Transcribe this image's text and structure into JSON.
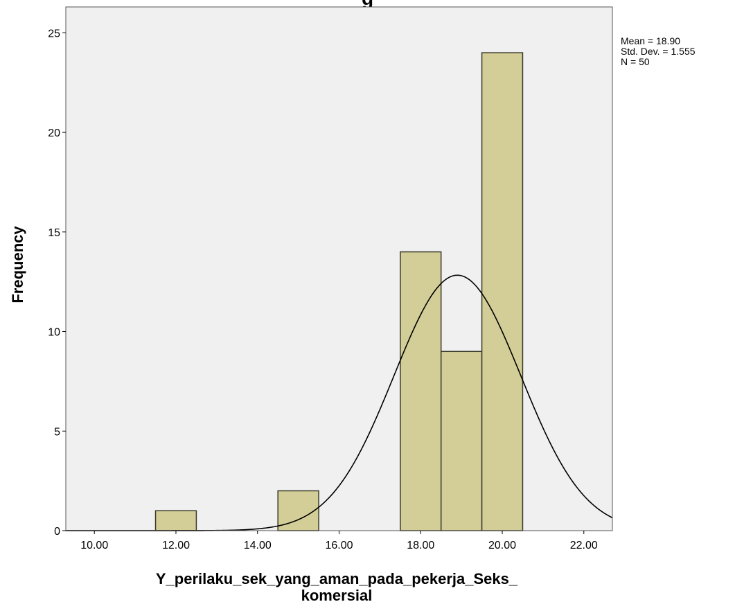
{
  "chart_data": {
    "type": "bar",
    "title": "",
    "xlabel_lines": [
      "Y_perilaku_sek_yang_aman_pada_pekerja_Seks_",
      "komersial"
    ],
    "ylabel": "Frequency",
    "x_range": [
      9.3,
      22.7
    ],
    "y_range": [
      0,
      26.3
    ],
    "x_ticks": [
      10,
      12,
      14,
      16,
      18,
      20,
      22
    ],
    "x_tick_labels": [
      "10.00",
      "12.00",
      "14.00",
      "16.00",
      "18.00",
      "20.00",
      "22.00"
    ],
    "y_ticks": [
      0,
      5,
      10,
      15,
      20,
      25
    ],
    "y_tick_labels": [
      "0",
      "5",
      "10",
      "15",
      "20",
      "25"
    ],
    "bins": [
      {
        "x0": 11.5,
        "x1": 12.5,
        "value": 1
      },
      {
        "x0": 14.5,
        "x1": 15.5,
        "value": 2
      },
      {
        "x0": 17.5,
        "x1": 18.5,
        "value": 14
      },
      {
        "x0": 18.5,
        "x1": 19.5,
        "value": 9
      },
      {
        "x0": 19.5,
        "x1": 20.5,
        "value": 24
      }
    ],
    "normal_curve": {
      "mean": 18.9,
      "std": 1.555,
      "n": 50,
      "bin_width": 1
    },
    "stats_lines": [
      "Mean = 18.90",
      "Std. Dev. = 1.555",
      "N = 50"
    ],
    "grid": false,
    "colors": {
      "plot_background": "#f0f0f0",
      "bar_fill": "#d3ce97",
      "bar_stroke": "#3a3a2a",
      "curve": "#000000"
    }
  }
}
